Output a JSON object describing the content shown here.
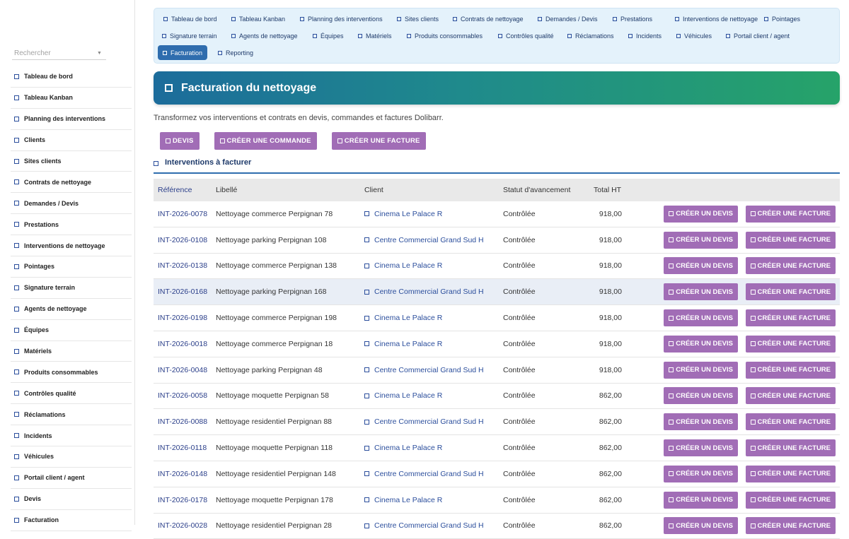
{
  "sidebar": {
    "search_placeholder": "Rechercher",
    "items": [
      "Tableau de bord",
      "Tableau Kanban",
      "Planning des interventions",
      "Clients",
      "Sites clients",
      "Contrats de nettoyage",
      "Demandes / Devis",
      "Prestations",
      "Interventions de nettoyage",
      "Pointages",
      "Signature terrain",
      "Agents de nettoyage",
      "Équipes",
      "Matériels",
      "Produits consommables",
      "Contrôles qualité",
      "Réclamations",
      "Incidents",
      "Véhicules",
      "Portail client / agent",
      "Devis",
      "Facturation"
    ]
  },
  "topnav": {
    "tabs": [
      "Tableau de bord",
      "Tableau Kanban",
      "Planning des interventions",
      "Sites clients",
      "Contrats de nettoyage",
      "Demandes / Devis",
      "Prestations",
      "Interventions de nettoyage",
      "Pointages",
      "Signature terrain",
      "Agents de nettoyage",
      "Équipes",
      "Matériels",
      "Produits consommables",
      "Contrôles qualité",
      "Réclamations",
      "Incidents",
      "Véhicules",
      "Portail client / agent",
      "Facturation",
      "Reporting"
    ],
    "active": "Facturation"
  },
  "page": {
    "title": "Facturation du nettoyage",
    "subtitle": "Transformez vos interventions et contrats en devis, commandes et factures Dolibarr.",
    "actions": [
      "DEVIS",
      "CRÉER UNE COMMANDE",
      "CRÉER UNE FACTURE"
    ],
    "section_title": "Interventions à facturer"
  },
  "table": {
    "headers": [
      "Référence",
      "Libellé",
      "Client",
      "Statut d'avancement",
      "Total HT",
      "",
      ""
    ],
    "row_button_devis": "CRÉER UN DEVIS",
    "row_button_facture": "CRÉER UNE FACTURE",
    "rows": [
      {
        "ref": "INT-2026-0078",
        "label": "Nettoyage commerce Perpignan 78",
        "client": "Cinema Le Palace R",
        "status": "Contrôlée",
        "total": "918,00"
      },
      {
        "ref": "INT-2026-0108",
        "label": "Nettoyage parking Perpignan 108",
        "client": "Centre Commercial Grand Sud H",
        "status": "Contrôlée",
        "total": "918,00"
      },
      {
        "ref": "INT-2026-0138",
        "label": "Nettoyage commerce Perpignan 138",
        "client": "Cinema Le Palace R",
        "status": "Contrôlée",
        "total": "918,00"
      },
      {
        "ref": "INT-2026-0168",
        "label": "Nettoyage parking Perpignan 168",
        "client": "Centre Commercial Grand Sud H",
        "status": "Contrôlée",
        "total": "918,00"
      },
      {
        "ref": "INT-2026-0198",
        "label": "Nettoyage commerce Perpignan 198",
        "client": "Cinema Le Palace R",
        "status": "Contrôlée",
        "total": "918,00"
      },
      {
        "ref": "INT-2026-0018",
        "label": "Nettoyage commerce Perpignan 18",
        "client": "Cinema Le Palace R",
        "status": "Contrôlée",
        "total": "918,00"
      },
      {
        "ref": "INT-2026-0048",
        "label": "Nettoyage parking Perpignan 48",
        "client": "Centre Commercial Grand Sud H",
        "status": "Contrôlée",
        "total": "918,00"
      },
      {
        "ref": "INT-2026-0058",
        "label": "Nettoyage moquette Perpignan 58",
        "client": "Cinema Le Palace R",
        "status": "Contrôlée",
        "total": "862,00"
      },
      {
        "ref": "INT-2026-0088",
        "label": "Nettoyage residentiel Perpignan 88",
        "client": "Centre Commercial Grand Sud H",
        "status": "Contrôlée",
        "total": "862,00"
      },
      {
        "ref": "INT-2026-0118",
        "label": "Nettoyage moquette Perpignan 118",
        "client": "Cinema Le Palace R",
        "status": "Contrôlée",
        "total": "862,00"
      },
      {
        "ref": "INT-2026-0148",
        "label": "Nettoyage residentiel Perpignan 148",
        "client": "Centre Commercial Grand Sud H",
        "status": "Contrôlée",
        "total": "862,00"
      },
      {
        "ref": "INT-2026-0178",
        "label": "Nettoyage moquette Perpignan 178",
        "client": "Cinema Le Palace R",
        "status": "Contrôlée",
        "total": "862,00"
      },
      {
        "ref": "INT-2026-0028",
        "label": "Nettoyage residentiel Perpignan 28",
        "client": "Centre Commercial Grand Sud H",
        "status": "Contrôlée",
        "total": "862,00"
      }
    ]
  },
  "colors": {
    "accent_purple": "#a16db6",
    "link_blue": "#2b4e9c",
    "active_tab": "#2f6dae"
  }
}
